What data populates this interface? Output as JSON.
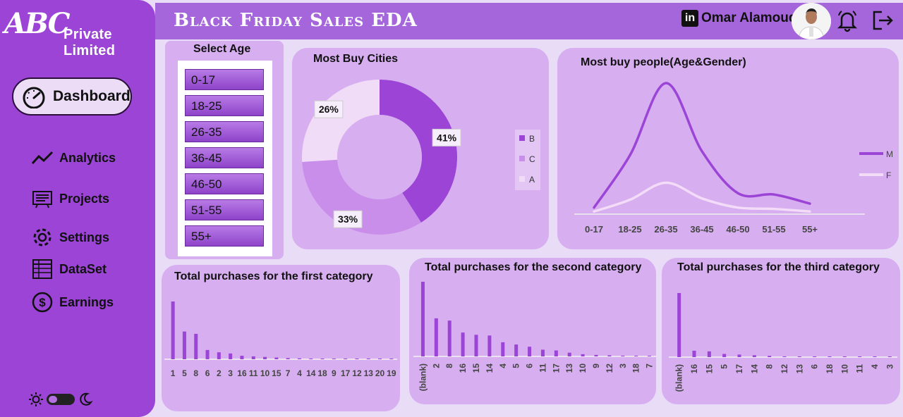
{
  "brand": {
    "logo_letters": "ABC",
    "name": "Private Limited"
  },
  "header": {
    "title": "Black Friday Sales EDA",
    "linkedin": "in",
    "user_name": "Omar Alamoudi"
  },
  "nav": {
    "dashboard": "Dashboard",
    "items": [
      {
        "label": "Analytics",
        "icon": "trend-icon"
      },
      {
        "label": "Projects",
        "icon": "projects-icon"
      },
      {
        "label": "Settings",
        "icon": "gear-icon"
      },
      {
        "label": "DataSet",
        "icon": "table-icon"
      },
      {
        "label": "Earnings",
        "icon": "dollar-icon"
      }
    ]
  },
  "age_filter": {
    "title": "Select Age",
    "options": [
      "0-17",
      "18-25",
      "26-35",
      "36-45",
      "46-50",
      "51-55",
      "55+"
    ]
  },
  "colors": {
    "accent": "#9b44d6",
    "card": "#d7aef0",
    "line_m": "#9b44d6",
    "line_f": "#f3dcf8"
  },
  "chart_data": [
    {
      "type": "pie",
      "title": "Most Buy Cities",
      "slices": [
        {
          "name": "B",
          "value": 41,
          "label": "41%",
          "color": "#9b44d6"
        },
        {
          "name": "C",
          "value": 33,
          "label": "33%",
          "color": "#c98ee9"
        },
        {
          "name": "A",
          "value": 26,
          "label": "26%",
          "color": "#f1dcf8"
        }
      ],
      "legend": "right"
    },
    {
      "type": "line",
      "title": "Most buy people(Age&Gender)",
      "categories": [
        "0-17",
        "18-25",
        "26-35",
        "36-45",
        "46-50",
        "51-55",
        "55+"
      ],
      "ylim": [
        0,
        100
      ],
      "series": [
        {
          "name": "M",
          "values": [
            5,
            45,
            100,
            48,
            16,
            15,
            8
          ],
          "color": "#9b44d6"
        },
        {
          "name": "F",
          "values": [
            2,
            11,
            24,
            12,
            5,
            4,
            2
          ],
          "color": "#f3dcf8"
        }
      ],
      "legend": "right"
    },
    {
      "type": "bar",
      "title": "Total purchases for the first category",
      "categories": [
        "1",
        "5",
        "8",
        "6",
        "2",
        "3",
        "16",
        "11",
        "10",
        "15",
        "7",
        "4",
        "14",
        "18",
        "9",
        "17",
        "12",
        "13",
        "20",
        "19"
      ],
      "values": [
        100,
        48,
        44,
        16,
        12,
        10,
        6,
        5,
        4,
        3,
        2,
        1.5,
        1.2,
        1,
        0.8,
        0.7,
        0.6,
        0.5,
        0.4,
        0.3
      ],
      "ylim": [
        0,
        100
      ]
    },
    {
      "type": "bar",
      "title": "Total purchases for the second category",
      "categories": [
        "(blank)",
        "2",
        "8",
        "16",
        "15",
        "14",
        "4",
        "5",
        "6",
        "11",
        "17",
        "13",
        "10",
        "9",
        "12",
        "3",
        "18",
        "7"
      ],
      "values": [
        100,
        51,
        48,
        32,
        29,
        28,
        19,
        16,
        13,
        9,
        8,
        5,
        3,
        2,
        1.5,
        1,
        0.6,
        0.3
      ],
      "ylim": [
        0,
        100
      ]
    },
    {
      "type": "bar",
      "title": "Total purchases for the third category",
      "categories": [
        "(blank)",
        "16",
        "15",
        "5",
        "17",
        "14",
        "8",
        "12",
        "13",
        "6",
        "18",
        "10",
        "11",
        "4",
        "3"
      ],
      "values": [
        100,
        10,
        9,
        5,
        4,
        3,
        2,
        1,
        0.8,
        0.6,
        0.4,
        0.3,
        0.2,
        0.15,
        0.1
      ],
      "ylim": [
        0,
        100
      ]
    }
  ]
}
